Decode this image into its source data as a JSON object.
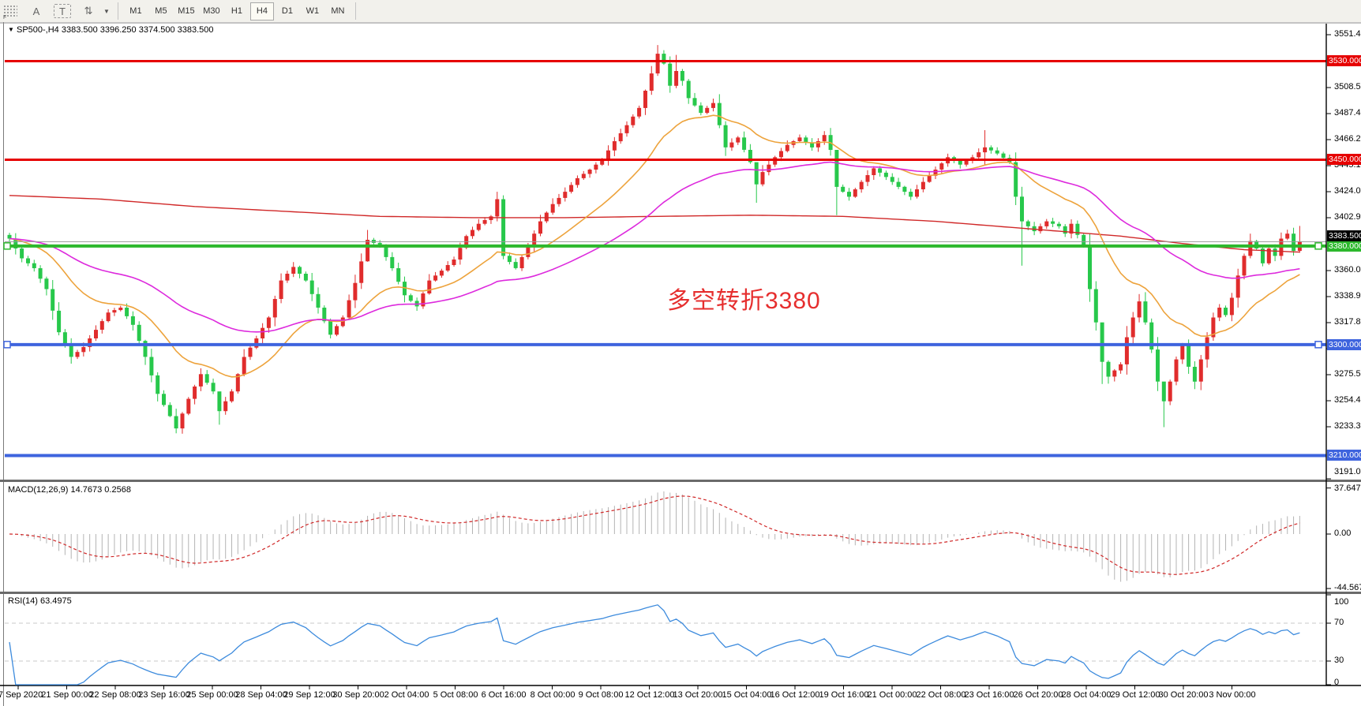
{
  "toolbar": {
    "grip_label": "F",
    "icons": [
      {
        "name": "text-a-icon",
        "glyph": "A"
      },
      {
        "name": "text-box-icon",
        "glyph": "T"
      },
      {
        "name": "cycles-icon",
        "glyph": "⇅"
      },
      {
        "name": "dropdown-caret",
        "glyph": "▼"
      }
    ],
    "timeframes": [
      "M1",
      "M5",
      "M15",
      "M30",
      "H1",
      "H4",
      "D1",
      "W1",
      "MN"
    ],
    "active_timeframe": "H4"
  },
  "chart_header": {
    "collapse_glyph": "▼",
    "symbol_line": "SP500-,H4  3383.500 3396.250 3374.500 3383.500"
  },
  "annotation": {
    "text": "多空转折3380",
    "color": "#e62e2e"
  },
  "indicator_labels": {
    "macd": "MACD(12,26,9) 14.7673 0.2568",
    "rsi": "RSI(14) 63.4975"
  },
  "axes": {
    "price_ticks": [
      {
        "label": "3551.410",
        "value": 3551.41
      },
      {
        "label": "3508.530",
        "value": 3508.53
      },
      {
        "label": "3487.410",
        "value": 3487.41
      },
      {
        "label": "3466.290",
        "value": 3466.29
      },
      {
        "label": "3445.170",
        "value": 3445.17
      },
      {
        "label": "3424.050",
        "value": 3424.05
      },
      {
        "label": "3402.930",
        "value": 3402.93
      },
      {
        "label": "3360.050",
        "value": 3360.05
      },
      {
        "label": "3338.930",
        "value": 3338.93
      },
      {
        "label": "3317.810",
        "value": 3317.81
      },
      {
        "label": "3296.690",
        "value": 3296.69
      },
      {
        "label": "3275.570",
        "value": 3275.57
      },
      {
        "label": "3254.450",
        "value": 3254.45
      },
      {
        "label": "3233.330",
        "value": 3233.33
      },
      {
        "label": "3191.090",
        "value": 3191.09
      }
    ],
    "macd_ticks": [
      {
        "label": "37.6477",
        "value": 37.6477
      },
      {
        "label": "0.00",
        "value": 0
      },
      {
        "label": "-44.5673",
        "value": -44.5673
      }
    ],
    "rsi_ticks": [
      {
        "label": "100",
        "value": 100
      },
      {
        "label": "70",
        "value": 70
      },
      {
        "label": "30",
        "value": 30
      },
      {
        "label": "0",
        "value": 0
      }
    ],
    "date_labels": [
      "17 Sep 2020",
      "21 Sep 00:00",
      "22 Sep 08:00",
      "23 Sep 16:00",
      "25 Sep 00:00",
      "28 Sep 04:00",
      "29 Sep 12:00",
      "30 Sep 20:00",
      "2 Oct 04:00",
      "5 Oct 08:00",
      "6 Oct 16:00",
      "8 Oct 00:00",
      "9 Oct 08:00",
      "12 Oct 12:00",
      "13 Oct 20:00",
      "15 Oct 04:00",
      "16 Oct 12:00",
      "19 Oct 16:00",
      "21 Oct 00:00",
      "22 Oct 08:00",
      "23 Oct 16:00",
      "26 Oct 20:00",
      "28 Oct 04:00",
      "29 Oct 12:00",
      "30 Oct 20:00",
      "3 Nov 00:00"
    ]
  },
  "chart_data": {
    "type": "candlestick",
    "symbol": "SP500-",
    "timeframe": "H4",
    "last_bar_ohlc": {
      "open": 3383.5,
      "high": 3396.25,
      "low": 3374.5,
      "close": 3383.5
    },
    "price_range_visible": [
      3191.09,
      3557.0
    ],
    "horizontal_levels": [
      {
        "price": 3530.0,
        "label": "3530.000",
        "color": "#e60000",
        "width": 3
      },
      {
        "price": 3450.0,
        "label": "3450.000",
        "color": "#e60000",
        "width": 3
      },
      {
        "price": 3380.0,
        "label": "3380.000",
        "color": "#2db82d",
        "width": 4,
        "handles": true
      },
      {
        "price": 3300.0,
        "label": "3300.000",
        "color": "#3e64de",
        "width": 4,
        "handles": true
      },
      {
        "price": 3210.0,
        "label": "3210.000",
        "color": "#3e64de",
        "width": 4
      }
    ],
    "current_price": {
      "value": 3383.5,
      "label": "3383.500",
      "line_color": "#9a9a9a",
      "box_color": "#000000"
    },
    "rsi_levels": [
      70,
      30
    ],
    "bars_count": 210,
    "close_anchors": [
      [
        0,
        3386
      ],
      [
        2,
        3370
      ],
      [
        4,
        3362
      ],
      [
        6,
        3345
      ],
      [
        8,
        3310
      ],
      [
        10,
        3290
      ],
      [
        12,
        3298
      ],
      [
        14,
        3312
      ],
      [
        16,
        3326
      ],
      [
        18,
        3330
      ],
      [
        20,
        3316
      ],
      [
        22,
        3290
      ],
      [
        24,
        3260
      ],
      [
        26,
        3242
      ],
      [
        27,
        3232
      ],
      [
        29,
        3256
      ],
      [
        31,
        3276
      ],
      [
        33,
        3262
      ],
      [
        34,
        3246
      ],
      [
        36,
        3262
      ],
      [
        38,
        3290
      ],
      [
        40,
        3305
      ],
      [
        42,
        3322
      ],
      [
        44,
        3352
      ],
      [
        46,
        3363
      ],
      [
        48,
        3352
      ],
      [
        50,
        3330
      ],
      [
        52,
        3308
      ],
      [
        54,
        3322
      ],
      [
        56,
        3350
      ],
      [
        58,
        3385
      ],
      [
        60,
        3380
      ],
      [
        62,
        3362
      ],
      [
        64,
        3340
      ],
      [
        66,
        3331
      ],
      [
        68,
        3352
      ],
      [
        70,
        3360
      ],
      [
        72,
        3369
      ],
      [
        74,
        3388
      ],
      [
        76,
        3398
      ],
      [
        78,
        3404
      ],
      [
        79,
        3418
      ],
      [
        80,
        3372
      ],
      [
        82,
        3362
      ],
      [
        84,
        3380
      ],
      [
        86,
        3400
      ],
      [
        88,
        3414
      ],
      [
        90,
        3424
      ],
      [
        92,
        3435
      ],
      [
        94,
        3442
      ],
      [
        96,
        3450
      ],
      [
        98,
        3465
      ],
      [
        100,
        3478
      ],
      [
        102,
        3492
      ],
      [
        104,
        3520
      ],
      [
        105,
        3536
      ],
      [
        106,
        3528
      ],
      [
        107,
        3510
      ],
      [
        108,
        3522
      ],
      [
        109,
        3514
      ],
      [
        110,
        3500
      ],
      [
        112,
        3488
      ],
      [
        114,
        3496
      ],
      [
        115,
        3478
      ],
      [
        116,
        3460
      ],
      [
        118,
        3468
      ],
      [
        120,
        3448
      ],
      [
        121,
        3430
      ],
      [
        122,
        3440
      ],
      [
        124,
        3452
      ],
      [
        126,
        3462
      ],
      [
        128,
        3468
      ],
      [
        130,
        3460
      ],
      [
        132,
        3470
      ],
      [
        133,
        3458
      ],
      [
        134,
        3428
      ],
      [
        136,
        3420
      ],
      [
        138,
        3432
      ],
      [
        140,
        3443
      ],
      [
        142,
        3436
      ],
      [
        144,
        3428
      ],
      [
        146,
        3420
      ],
      [
        148,
        3432
      ],
      [
        150,
        3442
      ],
      [
        152,
        3452
      ],
      [
        154,
        3446
      ],
      [
        156,
        3452
      ],
      [
        158,
        3460
      ],
      [
        160,
        3455
      ],
      [
        162,
        3448
      ],
      [
        163,
        3420
      ],
      [
        164,
        3400
      ],
      [
        166,
        3392
      ],
      [
        168,
        3400
      ],
      [
        170,
        3396
      ],
      [
        171,
        3390
      ],
      [
        172,
        3398
      ],
      [
        174,
        3380
      ],
      [
        175,
        3345
      ],
      [
        176,
        3318
      ],
      [
        177,
        3286
      ],
      [
        178,
        3274
      ],
      [
        180,
        3284
      ],
      [
        181,
        3306
      ],
      [
        182,
        3322
      ],
      [
        183,
        3335
      ],
      [
        184,
        3318
      ],
      [
        185,
        3296
      ],
      [
        186,
        3270
      ],
      [
        187,
        3254
      ],
      [
        188,
        3270
      ],
      [
        189,
        3288
      ],
      [
        190,
        3300
      ],
      [
        191,
        3282
      ],
      [
        192,
        3270
      ],
      [
        193,
        3288
      ],
      [
        194,
        3306
      ],
      [
        195,
        3322
      ],
      [
        196,
        3330
      ],
      [
        197,
        3324
      ],
      [
        198,
        3338
      ],
      [
        199,
        3356
      ],
      [
        200,
        3372
      ],
      [
        201,
        3384
      ],
      [
        202,
        3378
      ],
      [
        203,
        3366
      ],
      [
        204,
        3378
      ],
      [
        205,
        3372
      ],
      [
        206,
        3386
      ],
      [
        207,
        3390
      ],
      [
        208,
        3376
      ],
      [
        209,
        3383.5
      ]
    ],
    "wick_overrides": {
      "27": [
        3248,
        3228
      ],
      "34": [
        3260,
        3235
      ],
      "58": [
        3393,
        3368
      ],
      "79": [
        3424,
        3400
      ],
      "105": [
        3543,
        3518
      ],
      "108": [
        3535,
        3508
      ],
      "121": [
        3438,
        3415
      ],
      "134": [
        3446,
        3405
      ],
      "158": [
        3474,
        3446
      ],
      "164": [
        3428,
        3364
      ],
      "177": [
        3310,
        3268
      ],
      "183": [
        3341,
        3318
      ],
      "187": [
        3268,
        3233
      ],
      "201": [
        3390,
        3370
      ],
      "209": [
        3396.25,
        3374.5
      ]
    },
    "moving_averages": [
      {
        "name": "fast-ma",
        "type": "ema",
        "period": 20,
        "color": "#eda33c"
      },
      {
        "name": "mid-ma",
        "type": "ema",
        "period": 55,
        "color": "#dd2add"
      },
      {
        "name": "slow-ma",
        "type": "anchored",
        "color": "#d02828",
        "anchors": [
          [
            0,
            3421
          ],
          [
            15,
            3418
          ],
          [
            30,
            3412
          ],
          [
            45,
            3408
          ],
          [
            60,
            3404
          ],
          [
            75,
            3403
          ],
          [
            90,
            3403
          ],
          [
            105,
            3404
          ],
          [
            120,
            3405
          ],
          [
            135,
            3404
          ],
          [
            150,
            3400
          ],
          [
            160,
            3396
          ],
          [
            170,
            3392
          ],
          [
            180,
            3388
          ],
          [
            190,
            3382
          ],
          [
            200,
            3377
          ],
          [
            209,
            3375
          ]
        ]
      }
    ],
    "macd": {
      "fast": 12,
      "slow": 26,
      "signal": 9,
      "main_value": 14.7673,
      "signal_value": 0.2568,
      "hist_color": "#b4b4b4",
      "signal_color": "#d02828"
    },
    "rsi": {
      "period": 14,
      "value": 63.4975,
      "color": "#3d8bdd",
      "level_color": "#c8c8c8"
    },
    "colors": {
      "up": "#e02c2c",
      "down": "#27c84b",
      "background": "#ffffff",
      "axis_text": "#000000"
    }
  }
}
